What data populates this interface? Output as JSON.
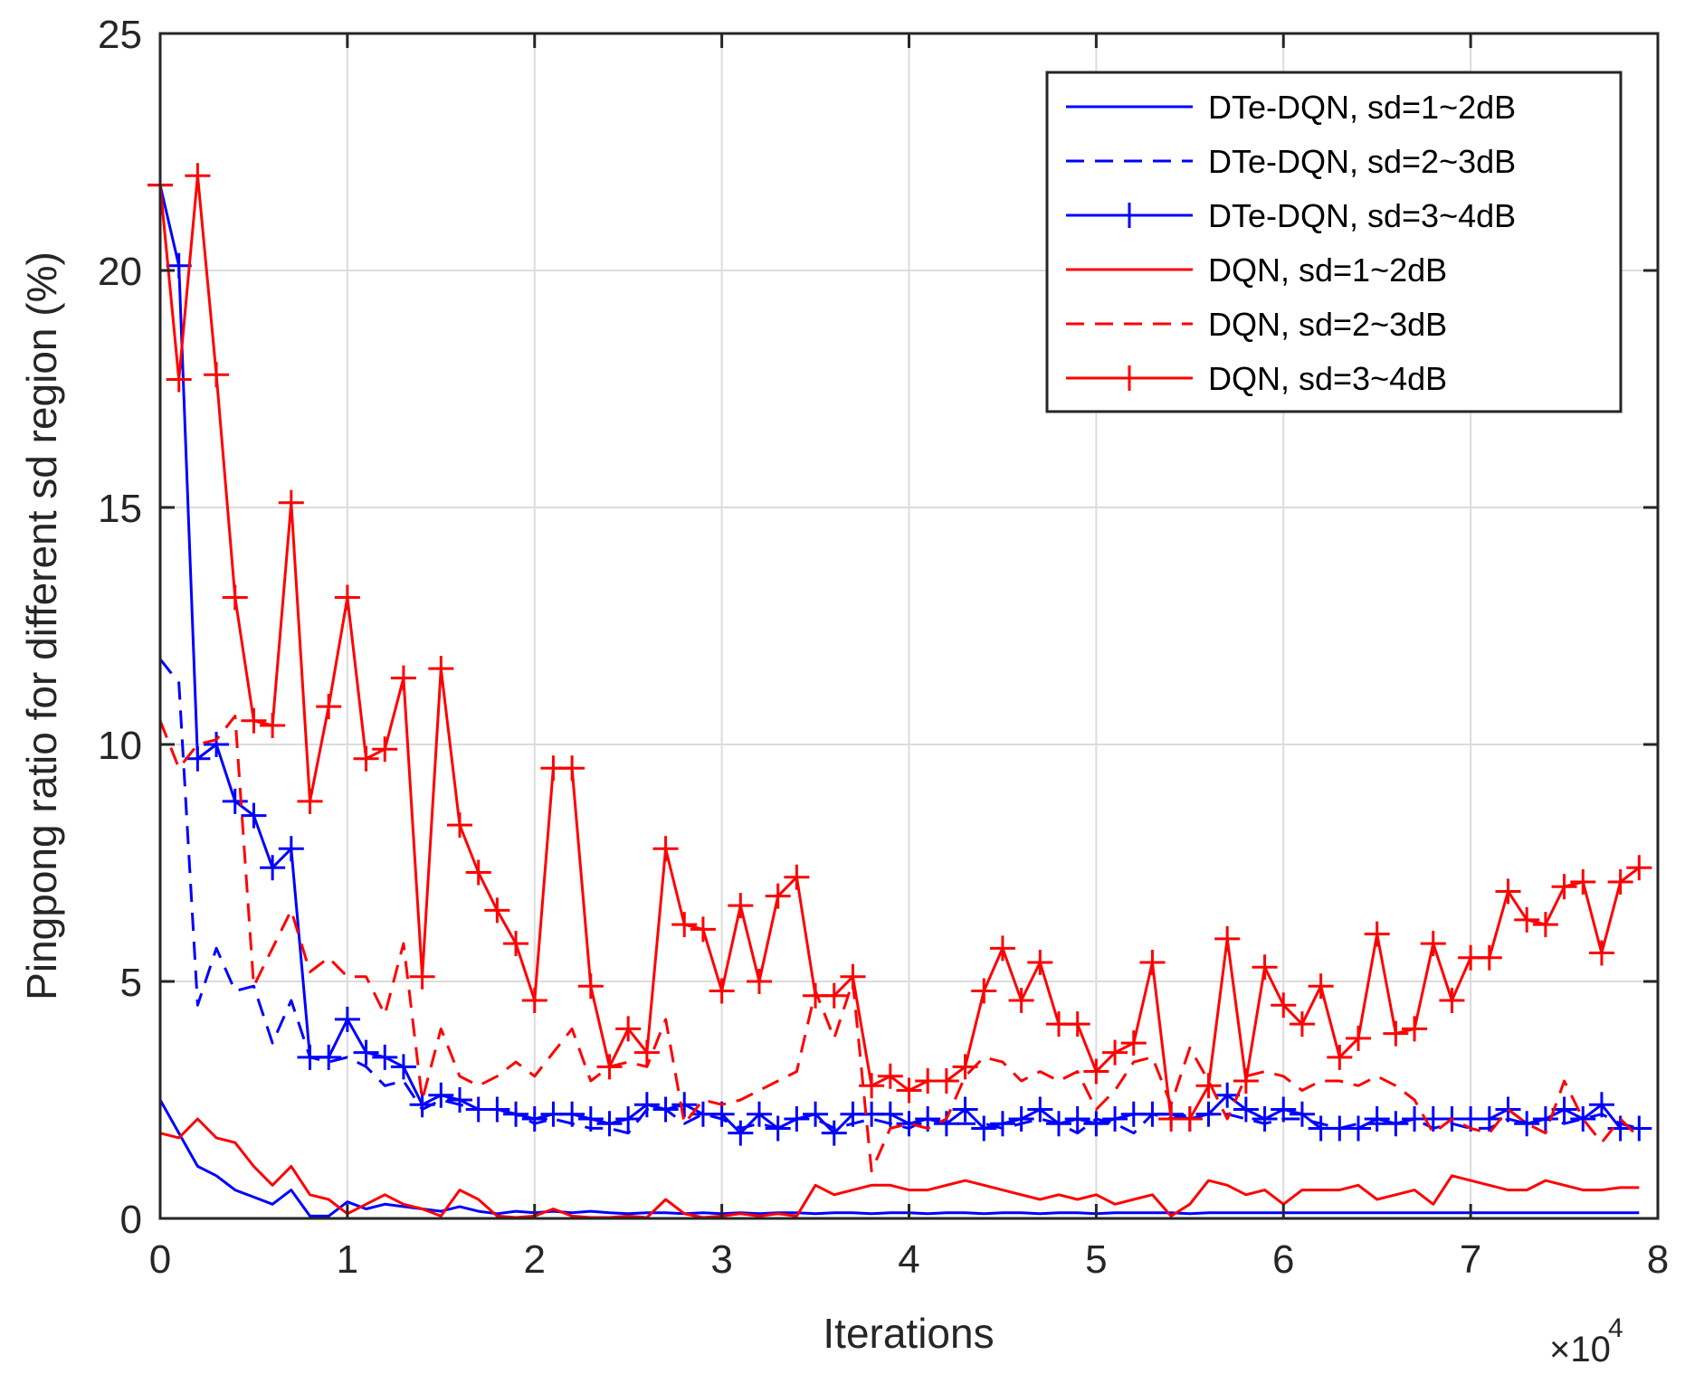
{
  "chart_data": {
    "type": "line",
    "title": "",
    "xlabel": "Iterations",
    "ylabel": "Pingpong ratio for different sd region (%)",
    "xlim": [
      0,
      8
    ],
    "ylim": [
      0,
      25
    ],
    "xticks": [
      "0",
      "1",
      "2",
      "3",
      "4",
      "5",
      "6",
      "7",
      "8"
    ],
    "yticks": [
      "0",
      "5",
      "10",
      "15",
      "20",
      "25"
    ],
    "x_multiplier": "×10",
    "x_multiplier_exp": "4",
    "grid": true,
    "legend_position": "top-right",
    "x": [
      0,
      0.1,
      0.2,
      0.3,
      0.4,
      0.5,
      0.6,
      0.7,
      0.8,
      0.9,
      1.0,
      1.1,
      1.2,
      1.3,
      1.4,
      1.5,
      1.6,
      1.7,
      1.8,
      1.9,
      2.0,
      2.1,
      2.2,
      2.3,
      2.4,
      2.5,
      2.6,
      2.7,
      2.8,
      2.9,
      3.0,
      3.1,
      3.2,
      3.3,
      3.4,
      3.5,
      3.6,
      3.7,
      3.8,
      3.9,
      4.0,
      4.1,
      4.2,
      4.3,
      4.4,
      4.5,
      4.6,
      4.7,
      4.8,
      4.9,
      5.0,
      5.1,
      5.2,
      5.3,
      5.4,
      5.5,
      5.6,
      5.7,
      5.8,
      5.9,
      6.0,
      6.1,
      6.2,
      6.3,
      6.4,
      6.5,
      6.6,
      6.7,
      6.8,
      6.9,
      7.0,
      7.1,
      7.2,
      7.3,
      7.4,
      7.5,
      7.6,
      7.7,
      7.8,
      7.9
    ],
    "series": [
      {
        "name": "DTe-DQN, sd=1~2dB",
        "color": "#0000ff",
        "style": "solid",
        "marker": "none",
        "values": [
          2.5,
          1.8,
          1.1,
          0.9,
          0.6,
          0.45,
          0.3,
          0.6,
          0.05,
          0.05,
          0.35,
          0.2,
          0.3,
          0.25,
          0.2,
          0.15,
          0.25,
          0.15,
          0.1,
          0.15,
          0.12,
          0.15,
          0.12,
          0.15,
          0.12,
          0.1,
          0.12,
          0.12,
          0.1,
          0.12,
          0.1,
          0.12,
          0.1,
          0.12,
          0.12,
          0.1,
          0.12,
          0.12,
          0.1,
          0.12,
          0.12,
          0.1,
          0.12,
          0.12,
          0.1,
          0.12,
          0.12,
          0.1,
          0.12,
          0.12,
          0.1,
          0.12,
          0.12,
          0.12,
          0.12,
          0.1,
          0.12,
          0.12,
          0.12,
          0.12,
          0.12,
          0.12,
          0.12,
          0.12,
          0.12,
          0.12,
          0.12,
          0.12,
          0.12,
          0.12,
          0.12,
          0.12,
          0.12,
          0.12,
          0.12,
          0.12,
          0.12,
          0.12,
          0.12,
          0.12
        ]
      },
      {
        "name": "DTe-DQN, sd=2~3dB",
        "color": "#0000ff",
        "style": "dashed",
        "marker": "none",
        "values": [
          11.8,
          11.3,
          4.5,
          5.7,
          4.8,
          4.9,
          3.7,
          4.6,
          3.4,
          3.3,
          3.4,
          3.2,
          2.8,
          2.9,
          2.3,
          2.5,
          2.4,
          2.3,
          2.3,
          2.2,
          2.0,
          2.1,
          2.0,
          1.9,
          1.9,
          1.8,
          2.3,
          2.3,
          2.0,
          2.2,
          2.1,
          1.9,
          2.0,
          1.9,
          2.1,
          2.1,
          1.9,
          2.0,
          2.1,
          2.0,
          1.9,
          2.1,
          2.0,
          2.0,
          2.0,
          1.9,
          2.0,
          2.1,
          2.0,
          1.8,
          2.1,
          2.0,
          1.8,
          2.2,
          2.1,
          2.2,
          2.2,
          2.2,
          2.1,
          2.0,
          2.1,
          2.1,
          2.0,
          1.9,
          2.0,
          2.0,
          2.0,
          2.1,
          1.9,
          2.0,
          1.9,
          1.9,
          2.1,
          2.0,
          2.1,
          2.0,
          2.1,
          2.2,
          2.0,
          1.9
        ]
      },
      {
        "name": "DTe-DQN, sd=3~4dB",
        "color": "#0000ff",
        "style": "solid",
        "marker": "+",
        "values": [
          21.8,
          20.1,
          9.7,
          10.0,
          8.8,
          8.5,
          7.4,
          7.8,
          3.4,
          3.4,
          4.2,
          3.5,
          3.4,
          3.2,
          2.4,
          2.6,
          2.5,
          2.3,
          2.3,
          2.2,
          2.1,
          2.2,
          2.2,
          2.1,
          2.0,
          2.1,
          2.4,
          2.3,
          2.4,
          2.2,
          2.2,
          1.8,
          2.2,
          1.9,
          2.1,
          2.2,
          1.8,
          2.2,
          2.2,
          2.2,
          2.0,
          2.1,
          2.0,
          2.3,
          1.9,
          2.0,
          2.1,
          2.3,
          2.0,
          2.1,
          2.0,
          2.1,
          2.2,
          2.2,
          2.2,
          2.1,
          2.2,
          2.6,
          2.3,
          2.1,
          2.3,
          2.2,
          1.9,
          1.9,
          1.9,
          2.1,
          2.0,
          2.1,
          2.1,
          2.1,
          2.1,
          2.1,
          2.3,
          2.0,
          2.1,
          2.3,
          2.1,
          2.4,
          1.9,
          1.9
        ]
      },
      {
        "name": "DQN, sd=1~2dB",
        "color": "#ff0000",
        "style": "solid",
        "marker": "none",
        "values": [
          1.8,
          1.7,
          2.1,
          1.7,
          1.6,
          1.1,
          0.7,
          1.1,
          0.5,
          0.4,
          0.1,
          0.3,
          0.5,
          0.3,
          0.2,
          0.05,
          0.6,
          0.4,
          0.05,
          0.02,
          0.05,
          0.2,
          0.05,
          0.02,
          0.02,
          0.05,
          0.02,
          0.4,
          0.1,
          0.02,
          0.05,
          0.1,
          0.05,
          0.1,
          0.05,
          0.7,
          0.5,
          0.6,
          0.7,
          0.7,
          0.6,
          0.6,
          0.7,
          0.8,
          0.7,
          0.6,
          0.5,
          0.4,
          0.5,
          0.4,
          0.5,
          0.3,
          0.4,
          0.5,
          0.05,
          0.3,
          0.8,
          0.7,
          0.5,
          0.6,
          0.3,
          0.6,
          0.6,
          0.6,
          0.7,
          0.4,
          0.5,
          0.6,
          0.3,
          0.9,
          0.8,
          0.7,
          0.6,
          0.6,
          0.8,
          0.7,
          0.6,
          0.6,
          0.65,
          0.65
        ]
      },
      {
        "name": "DQN, sd=2~3dB",
        "color": "#ff0000",
        "style": "dashed",
        "marker": "none",
        "values": [
          10.5,
          9.5,
          10.0,
          10.1,
          10.6,
          4.9,
          5.7,
          6.5,
          5.2,
          5.5,
          5.1,
          5.1,
          4.3,
          5.8,
          2.5,
          4.0,
          3.0,
          2.8,
          3.0,
          3.3,
          3.0,
          3.5,
          4.0,
          2.9,
          3.2,
          3.3,
          3.2,
          4.2,
          2.0,
          2.5,
          2.4,
          2.5,
          2.7,
          2.9,
          3.1,
          4.8,
          3.8,
          5.0,
          1.0,
          1.9,
          2.0,
          1.9,
          2.1,
          3.0,
          3.4,
          3.3,
          2.9,
          3.1,
          2.9,
          3.1,
          2.3,
          2.7,
          3.3,
          3.4,
          2.4,
          3.6,
          2.9,
          2.1,
          3.0,
          3.1,
          3.0,
          2.7,
          2.9,
          2.9,
          2.8,
          3.0,
          2.8,
          2.5,
          1.8,
          2.1,
          1.9,
          1.8,
          2.3,
          2.0,
          1.8,
          2.9,
          2.1,
          1.6,
          2.1,
          1.7
        ]
      },
      {
        "name": "DQN, sd=3~4dB",
        "color": "#ff0000",
        "style": "solid",
        "marker": "+",
        "values": [
          21.8,
          17.7,
          22.0,
          17.8,
          13.1,
          10.5,
          10.4,
          15.1,
          8.8,
          10.8,
          13.1,
          9.7,
          9.9,
          11.4,
          5.1,
          11.6,
          8.3,
          7.3,
          6.5,
          5.8,
          4.6,
          9.5,
          9.5,
          4.9,
          3.2,
          4.0,
          3.5,
          7.8,
          6.2,
          6.1,
          4.8,
          6.6,
          5.0,
          6.8,
          7.2,
          4.7,
          4.7,
          5.1,
          2.8,
          3.0,
          2.7,
          2.9,
          2.9,
          3.2,
          4.8,
          5.7,
          4.6,
          5.4,
          4.1,
          4.1,
          3.1,
          3.5,
          3.7,
          5.4,
          2.1,
          2.1,
          2.8,
          5.9,
          2.9,
          5.3,
          4.5,
          4.1,
          4.9,
          3.4,
          3.8,
          6.0,
          3.9,
          4.0,
          5.8,
          4.6,
          5.5,
          5.5,
          6.9,
          6.3,
          6.2,
          7.0,
          7.1,
          5.6,
          7.1,
          7.4
        ]
      }
    ]
  }
}
